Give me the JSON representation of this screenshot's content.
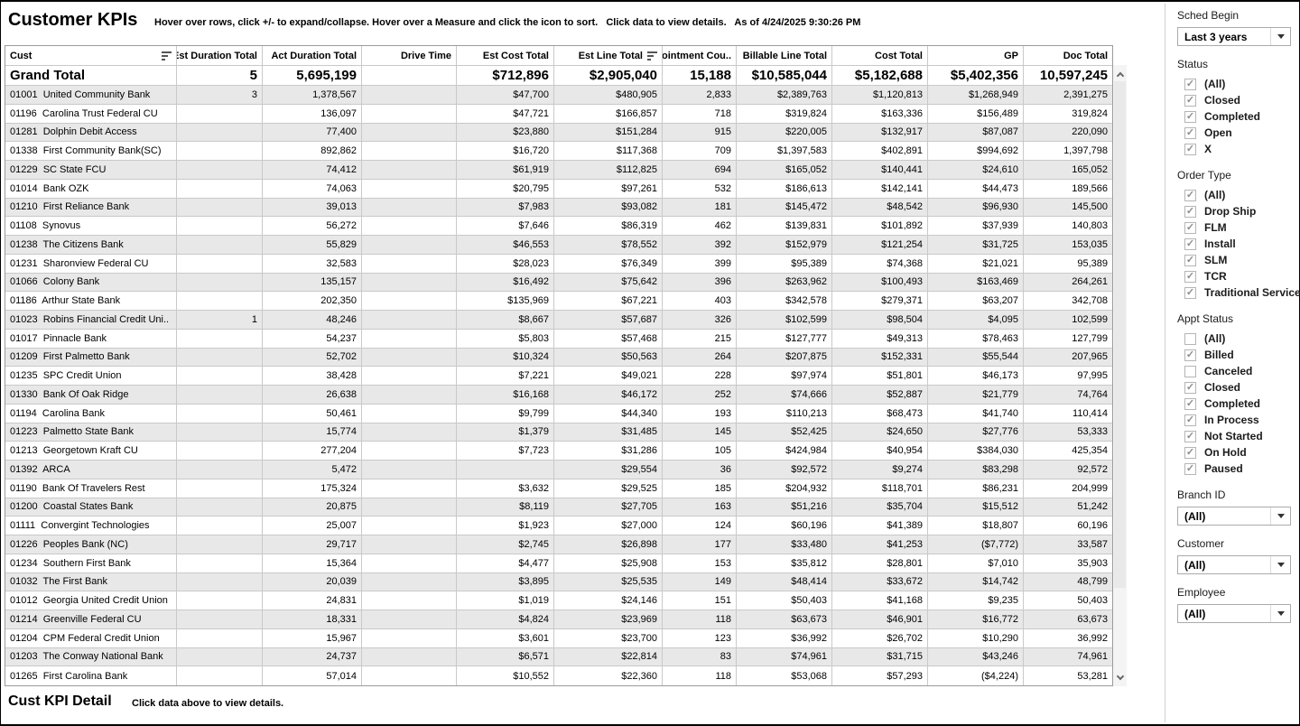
{
  "header": {
    "title": "Customer KPIs",
    "subtitle": "Hover over rows, click +/- to expand/collapse. Hover over a Measure and click the icon to sort.   Click data to view details.   As of 4/24/2025 9:30:26 PM"
  },
  "table": {
    "columns": [
      "Cust",
      "Est Duration Total",
      "Act Duration Total",
      "Drive Time",
      "Est Cost Total",
      "Est Line Total",
      "Appointment Cou..",
      "Billable Line Total",
      "Cost Total",
      "GP",
      "Doc Total"
    ],
    "sort_icon_columns": [
      0,
      5
    ],
    "grand_total": [
      "Grand Total",
      "5",
      "5,695,199",
      "",
      "$712,896",
      "$2,905,040",
      "15,188",
      "$10,585,044",
      "$5,182,688",
      "$5,402,356",
      "10,597,245"
    ],
    "rows": [
      [
        "01001  United Community Bank",
        "3",
        "1,378,567",
        "",
        "$47,700",
        "$480,905",
        "2,833",
        "$2,389,763",
        "$1,120,813",
        "$1,268,949",
        "2,391,275"
      ],
      [
        "01196  Carolina Trust Federal CU",
        "",
        "136,097",
        "",
        "$47,721",
        "$166,857",
        "718",
        "$319,824",
        "$163,336",
        "$156,489",
        "319,824"
      ],
      [
        "01281  Dolphin Debit Access",
        "",
        "77,400",
        "",
        "$23,880",
        "$151,284",
        "915",
        "$220,005",
        "$132,917",
        "$87,087",
        "220,090"
      ],
      [
        "01338  First Community Bank(SC)",
        "",
        "892,862",
        "",
        "$16,720",
        "$117,368",
        "709",
        "$1,397,583",
        "$402,891",
        "$994,692",
        "1,397,798"
      ],
      [
        "01229  SC State FCU",
        "",
        "74,412",
        "",
        "$61,919",
        "$112,825",
        "694",
        "$165,052",
        "$140,441",
        "$24,610",
        "165,052"
      ],
      [
        "01014  Bank OZK",
        "",
        "74,063",
        "",
        "$20,795",
        "$97,261",
        "532",
        "$186,613",
        "$142,141",
        "$44,473",
        "189,566"
      ],
      [
        "01210  First Reliance Bank",
        "",
        "39,013",
        "",
        "$7,983",
        "$93,082",
        "181",
        "$145,472",
        "$48,542",
        "$96,930",
        "145,500"
      ],
      [
        "01108  Synovus",
        "",
        "56,272",
        "",
        "$7,646",
        "$86,319",
        "462",
        "$139,831",
        "$101,892",
        "$37,939",
        "140,803"
      ],
      [
        "01238  The Citizens Bank",
        "",
        "55,829",
        "",
        "$46,553",
        "$78,552",
        "392",
        "$152,979",
        "$121,254",
        "$31,725",
        "153,035"
      ],
      [
        "01231  Sharonview Federal CU",
        "",
        "32,583",
        "",
        "$28,023",
        "$76,349",
        "399",
        "$95,389",
        "$74,368",
        "$21,021",
        "95,389"
      ],
      [
        "01066  Colony Bank",
        "",
        "135,157",
        "",
        "$16,492",
        "$75,642",
        "396",
        "$263,962",
        "$100,493",
        "$163,469",
        "264,261"
      ],
      [
        "01186  Arthur State Bank",
        "",
        "202,350",
        "",
        "$135,969",
        "$67,221",
        "403",
        "$342,578",
        "$279,371",
        "$63,207",
        "342,708"
      ],
      [
        "01023  Robins Financial Credit Uni..",
        "1",
        "48,246",
        "",
        "$8,667",
        "$57,687",
        "326",
        "$102,599",
        "$98,504",
        "$4,095",
        "102,599"
      ],
      [
        "01017  Pinnacle Bank",
        "",
        "54,237",
        "",
        "$5,803",
        "$57,468",
        "215",
        "$127,777",
        "$49,313",
        "$78,463",
        "127,799"
      ],
      [
        "01209  First Palmetto Bank",
        "",
        "52,702",
        "",
        "$10,324",
        "$50,563",
        "264",
        "$207,875",
        "$152,331",
        "$55,544",
        "207,965"
      ],
      [
        "01235  SPC Credit Union",
        "",
        "38,428",
        "",
        "$7,221",
        "$49,021",
        "228",
        "$97,974",
        "$51,801",
        "$46,173",
        "97,995"
      ],
      [
        "01330  Bank Of Oak Ridge",
        "",
        "26,638",
        "",
        "$16,168",
        "$46,172",
        "252",
        "$74,666",
        "$52,887",
        "$21,779",
        "74,764"
      ],
      [
        "01194  Carolina Bank",
        "",
        "50,461",
        "",
        "$9,799",
        "$44,340",
        "193",
        "$110,213",
        "$68,473",
        "$41,740",
        "110,414"
      ],
      [
        "01223  Palmetto State Bank",
        "",
        "15,774",
        "",
        "$1,379",
        "$31,485",
        "145",
        "$52,425",
        "$24,650",
        "$27,776",
        "53,333"
      ],
      [
        "01213  Georgetown Kraft CU",
        "",
        "277,204",
        "",
        "$7,723",
        "$31,286",
        "105",
        "$424,984",
        "$40,954",
        "$384,030",
        "425,354"
      ],
      [
        "01392  ARCA",
        "",
        "5,472",
        "",
        "",
        "$29,554",
        "36",
        "$92,572",
        "$9,274",
        "$83,298",
        "92,572"
      ],
      [
        "01190  Bank Of Travelers Rest",
        "",
        "175,324",
        "",
        "$3,632",
        "$29,525",
        "185",
        "$204,932",
        "$118,701",
        "$86,231",
        "204,999"
      ],
      [
        "01200  Coastal States Bank",
        "",
        "20,875",
        "",
        "$8,119",
        "$27,705",
        "163",
        "$51,216",
        "$35,704",
        "$15,512",
        "51,242"
      ],
      [
        "01111  Convergint Technologies",
        "",
        "25,007",
        "",
        "$1,923",
        "$27,000",
        "124",
        "$60,196",
        "$41,389",
        "$18,807",
        "60,196"
      ],
      [
        "01226  Peoples Bank (NC)",
        "",
        "29,717",
        "",
        "$2,745",
        "$26,898",
        "177",
        "$33,480",
        "$41,253",
        "($7,772)",
        "33,587"
      ],
      [
        "01234  Southern First Bank",
        "",
        "15,364",
        "",
        "$4,477",
        "$25,908",
        "153",
        "$35,812",
        "$28,801",
        "$7,010",
        "35,903"
      ],
      [
        "01032  The First Bank",
        "",
        "20,039",
        "",
        "$3,895",
        "$25,535",
        "149",
        "$48,414",
        "$33,672",
        "$14,742",
        "48,799"
      ],
      [
        "01012  Georgia United Credit Union",
        "",
        "24,831",
        "",
        "$1,019",
        "$24,146",
        "151",
        "$50,403",
        "$41,168",
        "$9,235",
        "50,403"
      ],
      [
        "01214  Greenville Federal CU",
        "",
        "18,331",
        "",
        "$4,824",
        "$23,969",
        "118",
        "$63,673",
        "$46,901",
        "$16,772",
        "63,673"
      ],
      [
        "01204  CPM Federal Credit Union",
        "",
        "15,967",
        "",
        "$3,601",
        "$23,700",
        "123",
        "$36,992",
        "$26,702",
        "$10,290",
        "36,992"
      ],
      [
        "01203  The Conway National Bank",
        "",
        "24,737",
        "",
        "$6,571",
        "$22,814",
        "83",
        "$74,961",
        "$31,715",
        "$43,246",
        "74,961"
      ],
      [
        "01265  First Carolina Bank",
        "",
        "57,014",
        "",
        "$10,552",
        "$22,360",
        "118",
        "$53,068",
        "$57,293",
        "($4,224)",
        "53,281"
      ]
    ]
  },
  "detail": {
    "title": "Cust KPI Detail",
    "subtitle": "Click data above to view details."
  },
  "filters": {
    "sched_begin": {
      "label": "Sched Begin",
      "value": "Last 3 years"
    },
    "status": {
      "label": "Status",
      "options": [
        {
          "label": "(All)",
          "checked": true
        },
        {
          "label": "Closed",
          "checked": true
        },
        {
          "label": "Completed",
          "checked": true
        },
        {
          "label": "Open",
          "checked": true
        },
        {
          "label": "X",
          "checked": true
        }
      ]
    },
    "order_type": {
      "label": "Order Type",
      "options": [
        {
          "label": "(All)",
          "checked": true
        },
        {
          "label": "Drop Ship",
          "checked": true
        },
        {
          "label": "FLM",
          "checked": true
        },
        {
          "label": "Install",
          "checked": true
        },
        {
          "label": "SLM",
          "checked": true
        },
        {
          "label": "TCR",
          "checked": true
        },
        {
          "label": "Traditional Service",
          "checked": true
        }
      ]
    },
    "appt_status": {
      "label": "Appt Status",
      "options": [
        {
          "label": "(All)",
          "checked": false
        },
        {
          "label": "Billed",
          "checked": true
        },
        {
          "label": "Canceled",
          "checked": false
        },
        {
          "label": "Closed",
          "checked": true
        },
        {
          "label": "Completed",
          "checked": true
        },
        {
          "label": "In Process",
          "checked": true
        },
        {
          "label": "Not Started",
          "checked": true
        },
        {
          "label": "On Hold",
          "checked": true
        },
        {
          "label": "Paused",
          "checked": true
        }
      ]
    },
    "branch_id": {
      "label": "Branch ID",
      "value": "(All)"
    },
    "customer": {
      "label": "Customer",
      "value": "(All)"
    },
    "employee": {
      "label": "Employee",
      "value": "(All)"
    }
  },
  "colors": {
    "row_stripe": "#e8e8e8",
    "grid_line": "#c9c9c9",
    "checkmark": "#8c8c8c",
    "text": "#000000"
  }
}
